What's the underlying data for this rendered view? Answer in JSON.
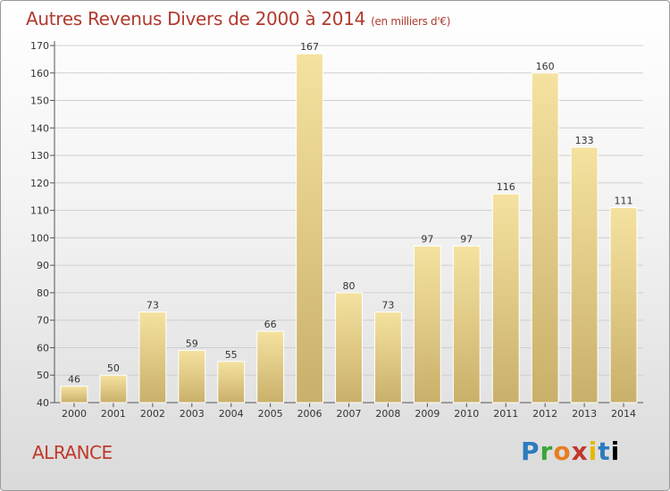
{
  "title": "Autres Revenus Divers de 2000 à 2014",
  "unit": "(en milliers d'€)",
  "place": "ALRANCE",
  "logo": [
    "P",
    "r",
    "o",
    "x",
    "i",
    "t",
    "i"
  ],
  "colors": {
    "bar_top": "#f5e2a0",
    "bar_bottom": "#c9b06a",
    "title": "#b03a2e",
    "place": "#c0392b",
    "grid": "#cfcfcf"
  },
  "chart_data": {
    "type": "bar",
    "title": "Autres Revenus Divers de 2000 à 2014",
    "categories": [
      "2000",
      "2001",
      "2002",
      "2003",
      "2004",
      "2005",
      "2006",
      "2007",
      "2008",
      "2009",
      "2010",
      "2011",
      "2012",
      "2013",
      "2014"
    ],
    "values": [
      46,
      50,
      73,
      59,
      55,
      66,
      167,
      80,
      73,
      97,
      97,
      116,
      160,
      133,
      111
    ],
    "ylim": [
      40,
      170
    ],
    "yticks": [
      40,
      50,
      60,
      70,
      80,
      90,
      100,
      110,
      120,
      130,
      140,
      150,
      160,
      170
    ],
    "grid": true,
    "data_labels": true
  }
}
